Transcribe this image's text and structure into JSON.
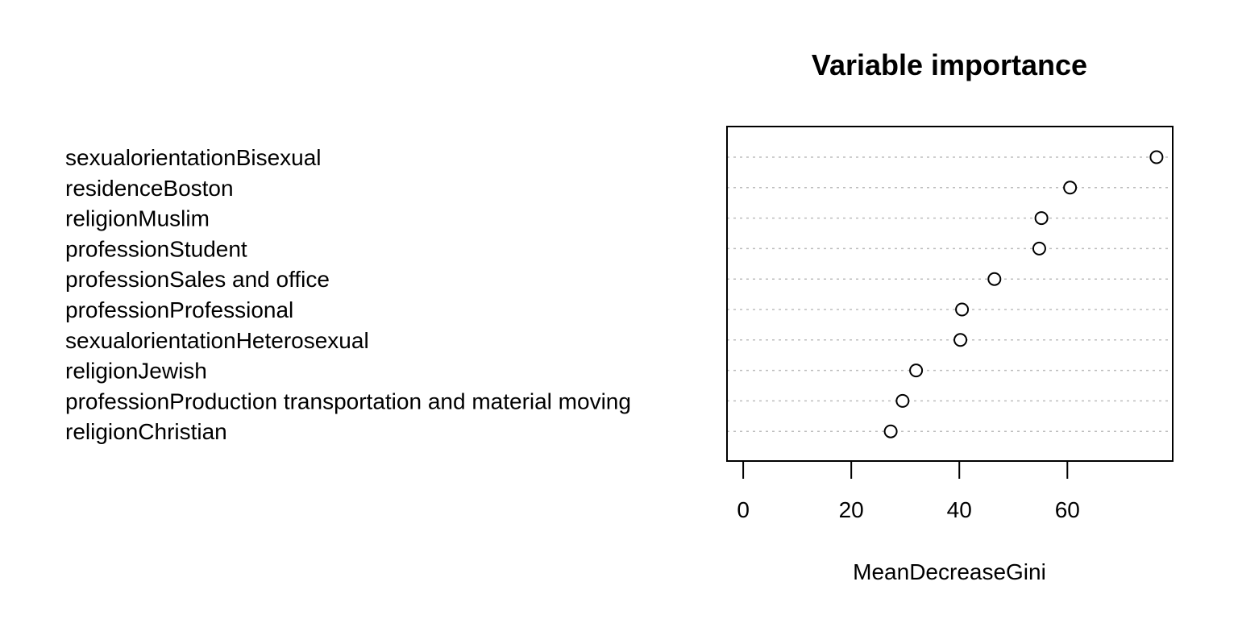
{
  "chart_data": {
    "type": "scatter",
    "title": "Variable importance",
    "xlabel": "MeanDecreaseGini",
    "ylabel": "",
    "xlim": [
      -3,
      79.5
    ],
    "xticks": [
      0,
      20,
      40,
      60
    ],
    "grid": "dotted horizontal guide lines",
    "categories": [
      "sexualorientationBisexual",
      "residenceBoston",
      "religionMuslim",
      "professionStudent",
      "professionSales and office",
      "professionProfessional",
      "sexualorientationHeterosexual",
      "religionJewish",
      "professionProduction transportation and material moving",
      "religionChristian"
    ],
    "values": [
      76.5,
      60.5,
      55.2,
      54.8,
      46.5,
      40.5,
      40.2,
      32.0,
      29.5,
      27.3
    ]
  },
  "colors": {
    "background": "#ffffff",
    "axis": "#000000",
    "guide": "#bdbdbd",
    "point_fill": "#ffffff",
    "point_stroke": "#000000"
  }
}
